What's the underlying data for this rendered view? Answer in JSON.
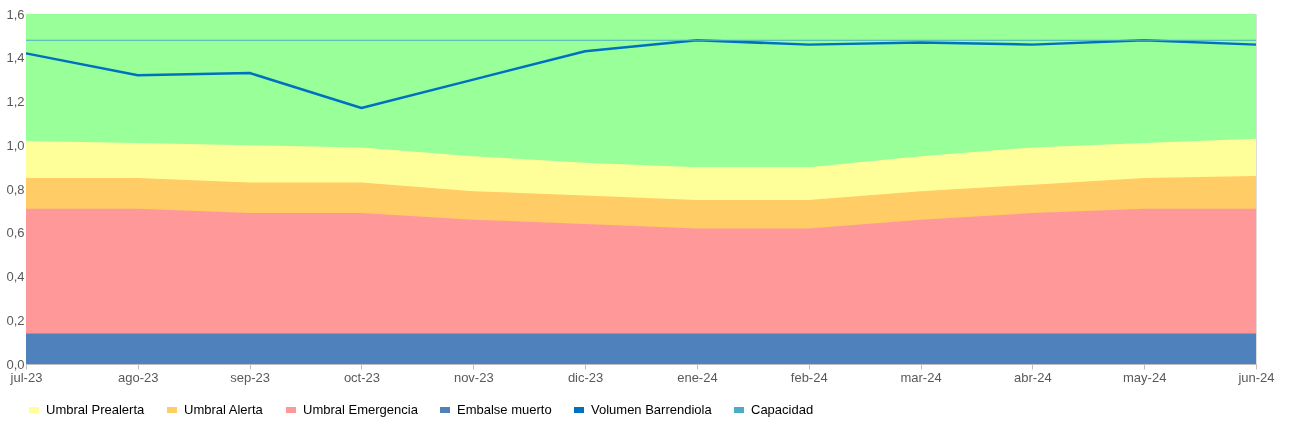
{
  "chart_data": {
    "type": "area",
    "categories": [
      "jul-23",
      "ago-23",
      "sep-23",
      "oct-23",
      "nov-23",
      "dic-23",
      "ene-24",
      "feb-24",
      "mar-24",
      "abr-24",
      "may-24",
      "jun-24"
    ],
    "series": [
      {
        "name": "Umbral Prealerta",
        "color": "#ffff99",
        "values": [
          1.02,
          1.01,
          1.0,
          0.99,
          0.95,
          0.92,
          0.9,
          0.9,
          0.95,
          0.99,
          1.01,
          1.03
        ]
      },
      {
        "name": "Umbral Alerta",
        "color": "#ffcc66",
        "values": [
          0.85,
          0.85,
          0.83,
          0.83,
          0.79,
          0.77,
          0.75,
          0.75,
          0.79,
          0.82,
          0.85,
          0.86
        ]
      },
      {
        "name": "Umbral Emergencia",
        "color": "#ff9999",
        "values": [
          0.71,
          0.71,
          0.69,
          0.69,
          0.66,
          0.64,
          0.62,
          0.62,
          0.66,
          0.69,
          0.71,
          0.71
        ]
      },
      {
        "name": "Embalse muerto",
        "color": "#4f81bd",
        "values": [
          0.14,
          0.14,
          0.14,
          0.14,
          0.14,
          0.14,
          0.14,
          0.14,
          0.14,
          0.14,
          0.14,
          0.14
        ]
      },
      {
        "name": "Volumen Barrendiola",
        "type": "line",
        "color": "#0070c0",
        "values": [
          1.42,
          1.32,
          1.33,
          1.17,
          1.3,
          1.43,
          1.48,
          1.46,
          1.47,
          1.46,
          1.48,
          1.46
        ]
      },
      {
        "name": "Capacidad",
        "type": "line",
        "color": "#4bacc6",
        "values": [
          1.48,
          1.48,
          1.48,
          1.48,
          1.48,
          1.48,
          1.48,
          1.48,
          1.48,
          1.48,
          1.48,
          1.48
        ]
      }
    ],
    "ylim": [
      0,
      1.6
    ],
    "yticks": [
      {
        "value": 0,
        "label": "0,0"
      },
      {
        "value": 0.2,
        "label": "0,2"
      },
      {
        "value": 0.4,
        "label": "0,4"
      },
      {
        "value": 0.6,
        "label": "0,6"
      },
      {
        "value": 0.8,
        "label": "0,8"
      },
      {
        "value": 1.0,
        "label": "1,0"
      },
      {
        "value": 1.2,
        "label": "1,2"
      },
      {
        "value": 1.4,
        "label": "1,4"
      },
      {
        "value": 1.6,
        "label": "1,6"
      }
    ],
    "bands": [
      {
        "axis": "y",
        "from": 0.9,
        "to": 1.6,
        "color": "#99ff99"
      }
    ],
    "legend": "bottom"
  }
}
